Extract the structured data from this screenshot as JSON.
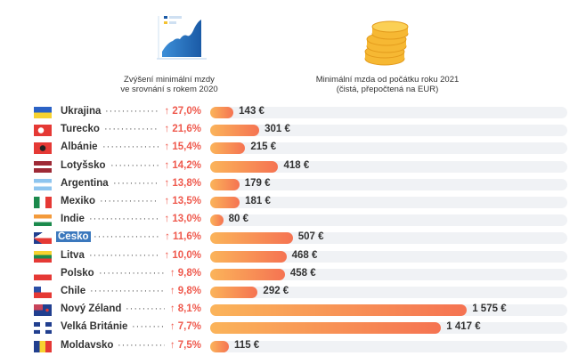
{
  "headers": {
    "increase": [
      "Zvýšení minimální mzdy",
      "ve srovnání s rokem 2020"
    ],
    "wage": [
      "Minimální mzda od počátku roku 2021",
      "(čistá, přepočtená na EUR)"
    ]
  },
  "colors": {
    "increase": "#ef5a4e",
    "bar_start": "#fbb45a",
    "bar_end": "#f57352",
    "highlight": "#3b78bd",
    "track": "#f0f2f5"
  },
  "chart_data": {
    "type": "bar",
    "orientation": "horizontal",
    "highlight": "Česko",
    "rows": [
      {
        "country": "Ukrajina",
        "flag": "ukraine",
        "increase": "↑ 27,0%",
        "wage": 143,
        "wage_label": "143 €"
      },
      {
        "country": "Turecko",
        "flag": "turkey",
        "increase": "↑ 21,6%",
        "wage": 301,
        "wage_label": "301 €"
      },
      {
        "country": "Albánie",
        "flag": "albania",
        "increase": "↑ 15,4%",
        "wage": 215,
        "wage_label": "215 €"
      },
      {
        "country": "Lotyšsko",
        "flag": "latvia",
        "increase": "↑ 14,2%",
        "wage": 418,
        "wage_label": "418 €"
      },
      {
        "country": "Argentina",
        "flag": "argentina",
        "increase": "↑ 13,8%",
        "wage": 179,
        "wage_label": "179 €"
      },
      {
        "country": "Mexiko",
        "flag": "mexico",
        "increase": "↑ 13,5%",
        "wage": 181,
        "wage_label": "181 €"
      },
      {
        "country": "Indie",
        "flag": "india",
        "increase": "↑ 13,0%",
        "wage": 80,
        "wage_label": "80 €"
      },
      {
        "country": "Česko",
        "flag": "czechia",
        "increase": "↑ 11,6%",
        "wage": 507,
        "wage_label": "507 €"
      },
      {
        "country": "Litva",
        "flag": "lithuania",
        "increase": "↑ 10,0%",
        "wage": 468,
        "wage_label": "468 €"
      },
      {
        "country": "Polsko",
        "flag": "poland",
        "increase": "↑ 9,8%",
        "wage": 458,
        "wage_label": "458 €"
      },
      {
        "country": "Chile",
        "flag": "chile",
        "increase": "↑ 9,8%",
        "wage": 292,
        "wage_label": "292 €"
      },
      {
        "country": "Nový Zéland",
        "flag": "new-zealand",
        "increase": "↑ 8,1%",
        "wage": 1575,
        "wage_label": "1 575 €"
      },
      {
        "country": "Velká Británie",
        "flag": "united-kingdom",
        "increase": "↑ 7,7%",
        "wage": 1417,
        "wage_label": "1 417 €"
      },
      {
        "country": "Moldavsko",
        "flag": "moldova",
        "increase": "↑ 7,5%",
        "wage": 115,
        "wage_label": "115 €"
      }
    ]
  }
}
